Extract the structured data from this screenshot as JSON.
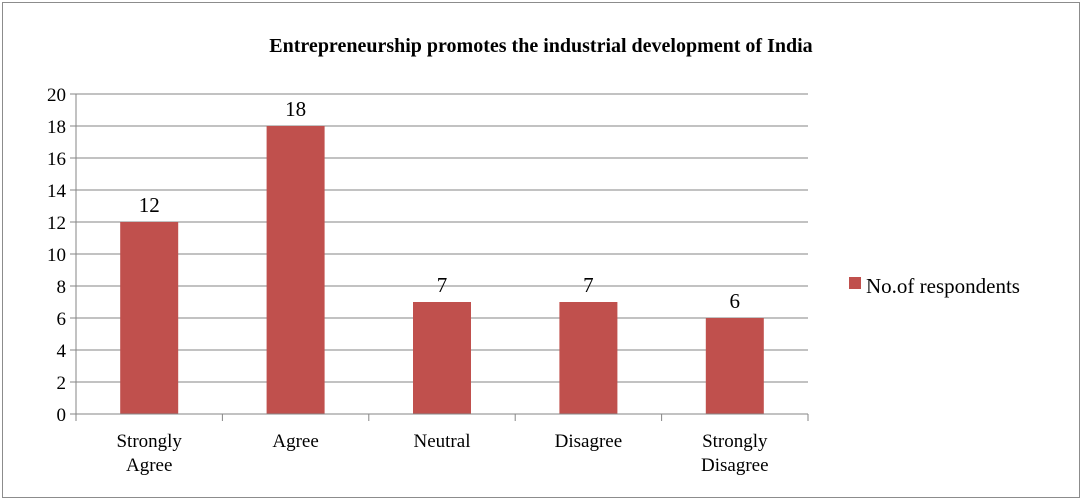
{
  "chart_data": {
    "type": "bar",
    "title": "Entrepreneurship promotes the industrial development of India",
    "categories": [
      [
        "Strongly",
        "Agree"
      ],
      [
        "Agree"
      ],
      [
        "Neutral"
      ],
      [
        "Disagree"
      ],
      [
        "Strongly",
        "Disagree"
      ]
    ],
    "series": [
      {
        "name": "No.of respondents",
        "values": [
          12,
          18,
          7,
          7,
          6
        ],
        "color": "#c0504d"
      }
    ],
    "ylim": [
      0,
      20
    ],
    "ytick_step": 2,
    "grid": true,
    "legend_position": "right"
  }
}
